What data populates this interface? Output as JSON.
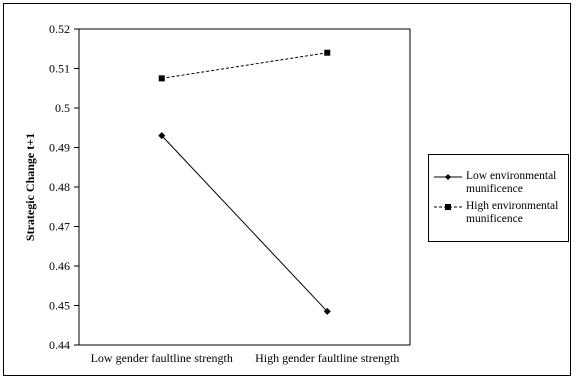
{
  "chart_data": {
    "type": "line",
    "title": "",
    "xlabel": "",
    "ylabel": "Strategic Change t+1",
    "categories": [
      "Low gender faultline strength",
      "High gender faultline strength"
    ],
    "ylim": [
      0.44,
      0.52
    ],
    "yticks": [
      "0.44",
      "0.45",
      "0.46",
      "0.47",
      "0.48",
      "0.49",
      "0.5",
      "0.51",
      "0.52"
    ],
    "grid": false,
    "legend_position": "right",
    "series": [
      {
        "name": "Low environmental munificence",
        "values": [
          0.493,
          0.4485
        ],
        "line": "solid",
        "marker": "diamond",
        "color": "#000000"
      },
      {
        "name": "High environmental munificence",
        "values": [
          0.5075,
          0.514
        ],
        "line": "dashed",
        "marker": "square",
        "color": "#000000"
      }
    ]
  }
}
